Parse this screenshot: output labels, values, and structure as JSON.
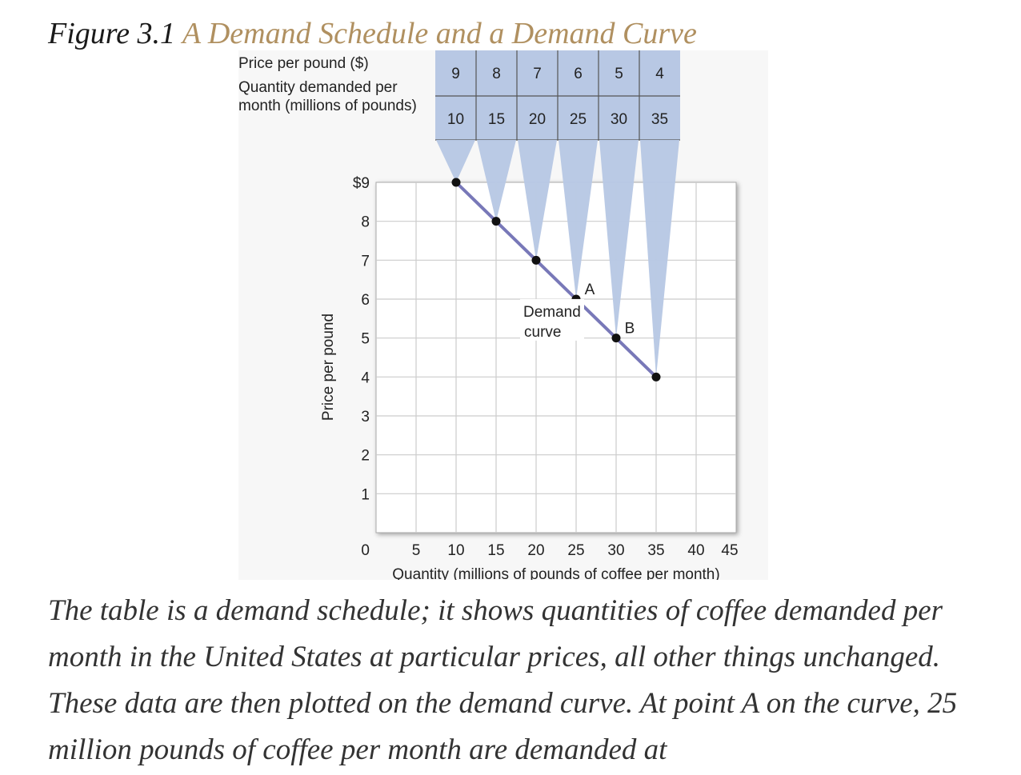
{
  "figure": {
    "number": "Figure 3.1",
    "title": "A Demand Schedule and a Demand Curve"
  },
  "caption": "The table is a demand schedule; it shows quantities of coffee demanded per month in the United States at particular prices, all other things unchanged. These data are then plotted on the demand curve. At point A on the curve, 25 million pounds of coffee per month are demanded at",
  "colors": {
    "title_accent": "#b09060",
    "table_fill": "#b8c8e4",
    "curve": "#7878b8",
    "point": "#111111",
    "grid": "#cccccc"
  },
  "chart_data": {
    "type": "line",
    "table": {
      "row_labels": [
        "Price per pound ($)",
        "Quantity demanded per month (millions of pounds)"
      ],
      "row_label_lines": [
        [
          "Price per pound ($)"
        ],
        [
          "Quantity demanded per",
          "month (millions of pounds)"
        ]
      ],
      "price": [
        9,
        8,
        7,
        6,
        5,
        4
      ],
      "quantity": [
        10,
        15,
        20,
        25,
        30,
        35
      ]
    },
    "series": [
      {
        "x": [
          10,
          15,
          20,
          25,
          30,
          35
        ],
        "y": [
          9,
          8,
          7,
          6,
          5,
          4
        ]
      }
    ],
    "point_labels": [
      {
        "label": "A",
        "x": 25,
        "y": 6
      },
      {
        "label": "B",
        "x": 30,
        "y": 5
      }
    ],
    "annotation": [
      "Demand",
      "curve"
    ],
    "xlabel": "Quantity (millions of pounds of coffee per month)",
    "ylabel": "Price per pound",
    "xlim": [
      0,
      45
    ],
    "ylim": [
      0,
      9
    ],
    "x_ticks": [
      "0",
      "5",
      "10",
      "15",
      "20",
      "25",
      "30",
      "35",
      "40",
      "45"
    ],
    "y_ticks": [
      "0",
      "1",
      "2",
      "3",
      "4",
      "5",
      "6",
      "7",
      "8",
      "$9"
    ],
    "grid": true
  }
}
